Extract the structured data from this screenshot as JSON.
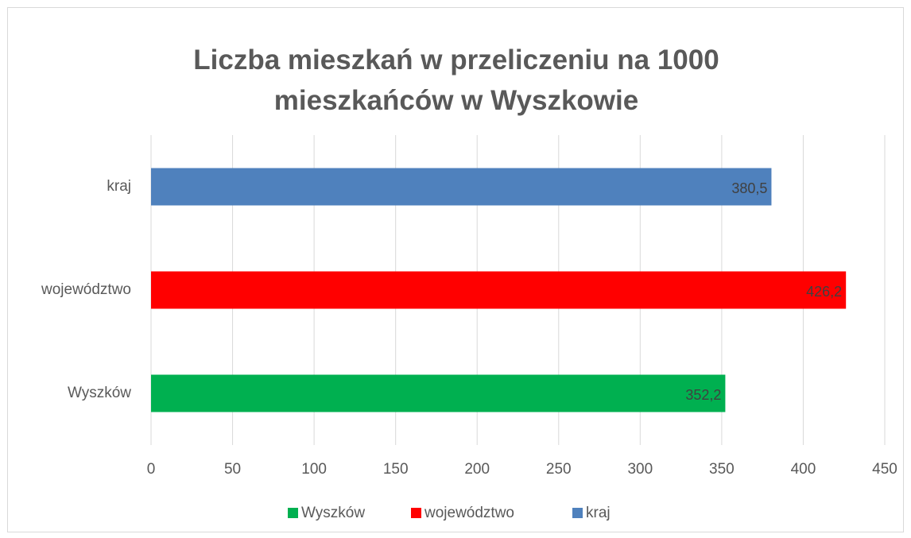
{
  "chart_data": {
    "type": "bar",
    "orientation": "horizontal",
    "title": "Liczba mieszkań w przeliczeniu na 1000 mieszkańców w Wyszkowie",
    "categories": [
      "Wyszków",
      "województwo",
      "kraj"
    ],
    "series": [
      {
        "name": "Wyszków",
        "color": "#00b050",
        "values": [
          352.2,
          null,
          null
        ],
        "value_labels": [
          "352,2",
          null,
          null
        ]
      },
      {
        "name": "województwo",
        "color": "#ff0000",
        "values": [
          null,
          426.2,
          null
        ],
        "value_labels": [
          null,
          "426,2",
          null
        ]
      },
      {
        "name": "kraj",
        "color": "#4f81bd",
        "values": [
          null,
          null,
          380.5
        ],
        "value_labels": [
          null,
          null,
          "380,5"
        ]
      }
    ],
    "xlim": [
      0,
      450
    ],
    "xticks": [
      0,
      50,
      100,
      150,
      200,
      250,
      300,
      350,
      400,
      450
    ],
    "grid": true,
    "legend": "bottom"
  }
}
